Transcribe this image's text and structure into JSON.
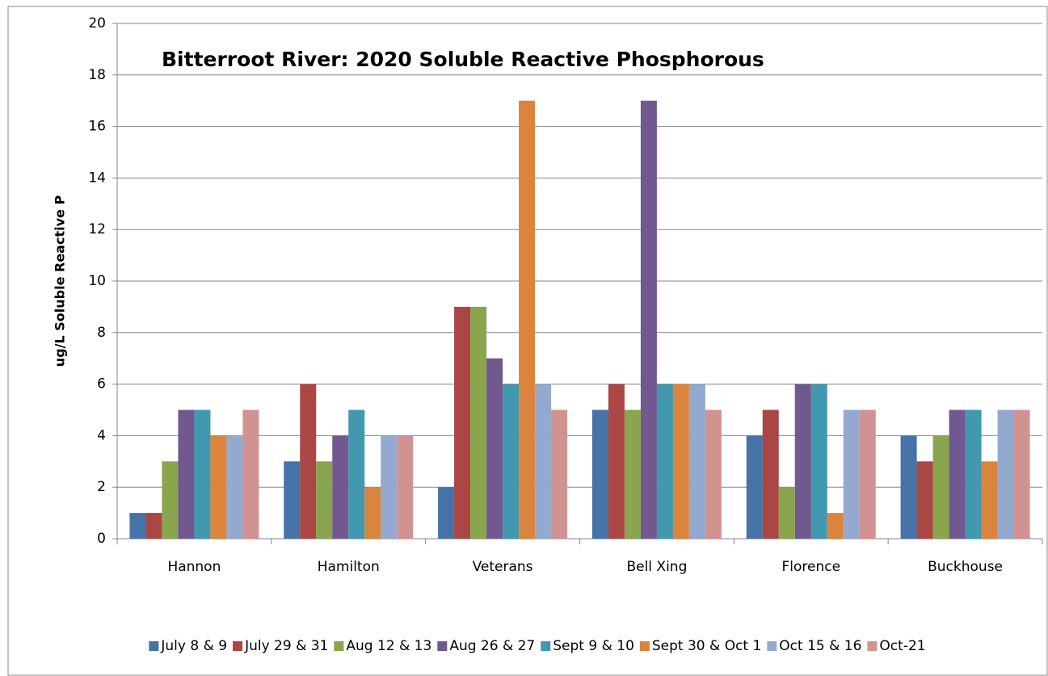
{
  "chart_data": {
    "type": "bar",
    "title": "Bitterroot River: 2020 Soluble Reactive Phosphorous",
    "y_label": "ug/L Soluble Reactive P",
    "categories": [
      "Hannon",
      "Hamilton",
      "Veterans",
      "Bell Xing",
      "Florence",
      "Buckhouse"
    ],
    "series": [
      {
        "name": "July 8 & 9",
        "color": "#4572a7",
        "values": [
          1,
          3,
          2,
          5,
          4,
          4
        ]
      },
      {
        "name": "July 29 & 31",
        "color": "#aa4643",
        "values": [
          1,
          6,
          9,
          6,
          5,
          3
        ]
      },
      {
        "name": "Aug 12 & 13",
        "color": "#89a54e",
        "values": [
          3,
          3,
          9,
          5,
          2,
          4
        ]
      },
      {
        "name": "Aug 26 & 27",
        "color": "#71588f",
        "values": [
          5,
          4,
          7,
          17,
          6,
          5
        ]
      },
      {
        "name": "Sept 9 & 10",
        "color": "#4198af",
        "values": [
          5,
          5,
          6,
          6,
          6,
          5
        ]
      },
      {
        "name": "Sept 30 & Oct 1",
        "color": "#db843d",
        "values": [
          4,
          2,
          17,
          6,
          1,
          3
        ]
      },
      {
        "name": "Oct 15 & 16",
        "color": "#93a9cf",
        "values": [
          4,
          4,
          6,
          6,
          5,
          5
        ]
      },
      {
        "name": "Oct-21",
        "color": "#d19392",
        "values": [
          5,
          4,
          5,
          5,
          5,
          5
        ]
      }
    ],
    "ylim": [
      0,
      20
    ],
    "yticks": [
      0,
      2,
      4,
      6,
      8,
      10,
      12,
      14,
      16,
      18,
      20
    ],
    "grid": true
  }
}
